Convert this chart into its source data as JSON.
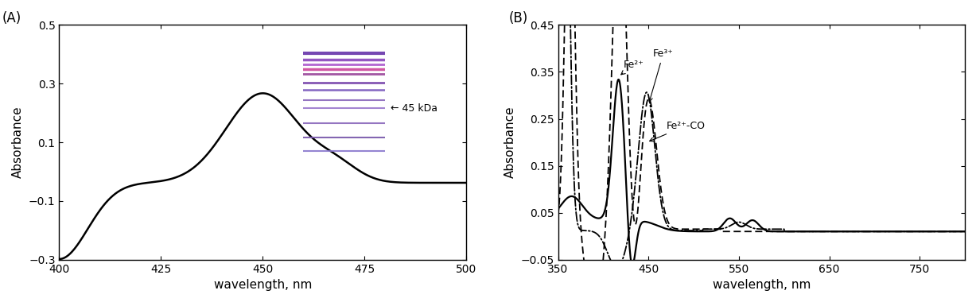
{
  "panel_A": {
    "label": "(A)",
    "xlabel": "wavelength, nm",
    "ylabel": "Absorbance",
    "xlim": [
      400,
      500
    ],
    "ylim": [
      -0.3,
      0.5
    ],
    "xticks": [
      400,
      425,
      450,
      475,
      500
    ],
    "yticks": [
      -0.3,
      -0.1,
      0.1,
      0.3,
      0.5
    ],
    "inset_text": "← 45 kDa",
    "inset_color": "#c8d0e8"
  },
  "panel_B": {
    "label": "(B)",
    "xlabel": "wavelength, nm",
    "ylabel": "Absorbance",
    "xlim": [
      350,
      800
    ],
    "ylim": [
      -0.05,
      0.45
    ],
    "xticks": [
      350,
      450,
      550,
      650,
      750
    ],
    "yticks": [
      -0.05,
      0.05,
      0.15,
      0.25,
      0.35,
      0.45
    ],
    "fe2_label": "Fe²⁺",
    "fe3_label": "Fe³⁺",
    "fe2co_label": "Fe²⁺-CO"
  },
  "background_color": "#ffffff",
  "line_color": "#000000"
}
